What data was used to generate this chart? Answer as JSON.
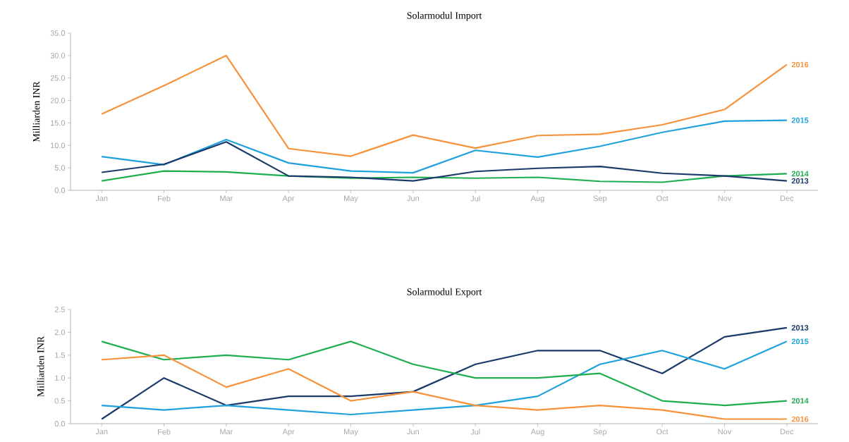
{
  "chart_data": [
    {
      "type": "line",
      "title": "Solarmodul Import",
      "ylabel": "Milliarden INR",
      "categories": [
        "Jan",
        "Feb",
        "Mar",
        "Apr",
        "May",
        "Jun",
        "Jul",
        "Aug",
        "Sep",
        "Oct",
        "Nov",
        "Dec"
      ],
      "ylim": [
        0,
        35
      ],
      "yticks": [
        {
          "value": 0,
          "label": "0.0"
        },
        {
          "value": 5,
          "label": "5.0"
        },
        {
          "value": 10,
          "label": "10.0"
        },
        {
          "value": 15,
          "label": "15.0"
        },
        {
          "value": 20,
          "label": "20.0"
        },
        {
          "value": 25,
          "label": "25.0"
        },
        {
          "value": 30,
          "label": "30.0"
        },
        {
          "value": 35,
          "label": "35.0"
        }
      ],
      "marker": "none",
      "series": [
        {
          "name": "2016",
          "color": "#f7923a",
          "values": [
            17,
            23.3,
            30,
            9.3,
            7.6,
            12.3,
            9.4,
            12.2,
            12.5,
            14.6,
            18,
            28
          ]
        },
        {
          "name": "2015",
          "color": "#1ea1dc",
          "values": [
            7.5,
            5.7,
            11.3,
            6.1,
            4.3,
            3.9,
            8.9,
            7.4,
            9.8,
            12.9,
            15.4,
            15.6
          ]
        },
        {
          "name": "2014",
          "color": "#1fae4f",
          "values": [
            2.1,
            4.3,
            4.1,
            3.2,
            2.7,
            2.9,
            2.7,
            2.9,
            2.0,
            1.8,
            3.2,
            3.7
          ]
        },
        {
          "name": "2013",
          "color": "#1b3a6b",
          "values": [
            4.0,
            5.8,
            10.8,
            3.2,
            2.9,
            2.1,
            4.2,
            4.9,
            5.3,
            3.8,
            3.2,
            2.1
          ]
        }
      ]
    },
    {
      "type": "line",
      "title": "Solarmodul Export",
      "ylabel": "Milliarden INR",
      "categories": [
        "Jan",
        "Feb",
        "Mar",
        "Apr",
        "May",
        "Jun",
        "Jul",
        "Aug",
        "Sep",
        "Oct",
        "Nov",
        "Dec"
      ],
      "ylim": [
        0,
        2.5
      ],
      "yticks": [
        {
          "value": 0,
          "label": "0.0"
        },
        {
          "value": 0.5,
          "label": "0.5"
        },
        {
          "value": 1,
          "label": "1.0"
        },
        {
          "value": 1.5,
          "label": "1.5"
        },
        {
          "value": 2,
          "label": "2.0"
        },
        {
          "value": 2.5,
          "label": "2.5"
        }
      ],
      "marker": "none",
      "series": [
        {
          "name": "2013",
          "color": "#1b3a6b",
          "values": [
            0.1,
            1.0,
            0.4,
            0.6,
            0.6,
            0.7,
            1.3,
            1.6,
            1.6,
            1.1,
            1.9,
            2.1
          ]
        },
        {
          "name": "2015",
          "color": "#1ea1dc",
          "values": [
            0.4,
            0.3,
            0.4,
            0.3,
            0.2,
            0.3,
            0.4,
            0.6,
            1.3,
            1.6,
            1.2,
            1.8
          ]
        },
        {
          "name": "2014",
          "color": "#1fae4f",
          "values": [
            1.8,
            1.4,
            1.5,
            1.4,
            1.8,
            1.3,
            1.0,
            1.0,
            1.1,
            0.5,
            0.4,
            0.5
          ]
        },
        {
          "name": "2016",
          "color": "#f7923a",
          "values": [
            1.4,
            1.5,
            0.8,
            1.2,
            0.5,
            0.7,
            0.4,
            0.3,
            0.4,
            0.3,
            0.1,
            0.1
          ]
        }
      ]
    }
  ]
}
